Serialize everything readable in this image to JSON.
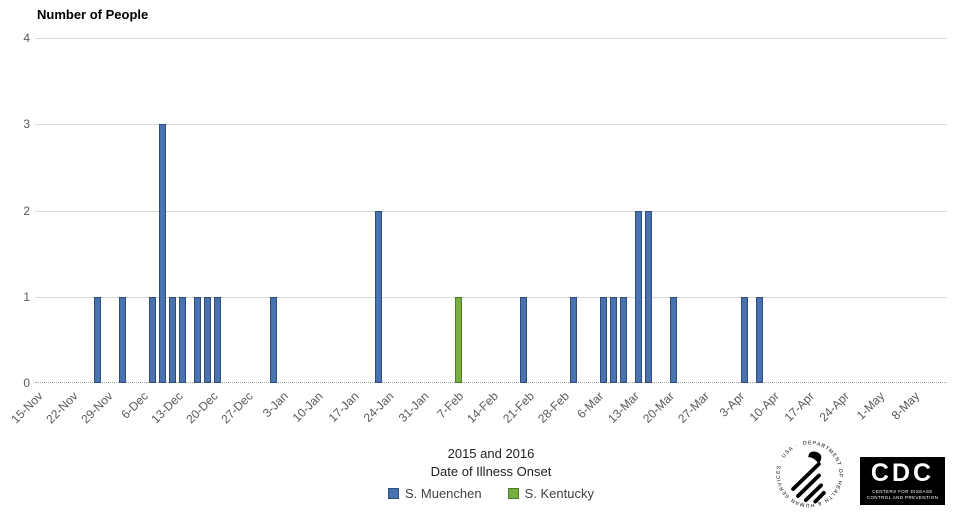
{
  "chart_data": {
    "type": "bar",
    "title": "Number of People",
    "x_axis_title_line1": "2015 and 2016",
    "x_axis_title_line2": "Date of Illness Onset",
    "ylim": [
      0,
      4
    ],
    "yticks": [
      0,
      1,
      2,
      3,
      4
    ],
    "x_tick_labels": [
      "15-Nov",
      "22-Nov",
      "29-Nov",
      "6-Dec",
      "13-Dec",
      "20-Dec",
      "27-Dec",
      "3-Jan",
      "10-Jan",
      "17-Jan",
      "24-Jan",
      "31-Jan",
      "7-Feb",
      "14-Feb",
      "21-Feb",
      "28-Feb",
      "6-Mar",
      "13-Mar",
      "20-Mar",
      "27-Mar",
      "3-Apr",
      "10-Apr",
      "17-Apr",
      "24-Apr",
      "1-May",
      "8-May"
    ],
    "x_tick_interval_days": 7,
    "x_axis_span_days": 182,
    "grid": true,
    "legend_position": "bottom",
    "series": [
      {
        "name": "S. Muenchen",
        "fill": "#4a72b0",
        "border": "#2d4d77",
        "points": [
          {
            "date": "27-Nov",
            "day": 12,
            "value": 1
          },
          {
            "date": "2-Dec",
            "day": 17,
            "value": 1
          },
          {
            "date": "8-Dec",
            "day": 23,
            "value": 1
          },
          {
            "date": "10-Dec",
            "day": 25,
            "value": 3
          },
          {
            "date": "12-Dec",
            "day": 27,
            "value": 1
          },
          {
            "date": "14-Dec",
            "day": 29,
            "value": 1
          },
          {
            "date": "17-Dec",
            "day": 32,
            "value": 1
          },
          {
            "date": "19-Dec",
            "day": 34,
            "value": 1
          },
          {
            "date": "21-Dec",
            "day": 36,
            "value": 1
          },
          {
            "date": "1-Jan",
            "day": 47,
            "value": 1
          },
          {
            "date": "22-Jan",
            "day": 68,
            "value": 2
          },
          {
            "date": "20-Feb",
            "day": 97,
            "value": 1
          },
          {
            "date": "1-Mar",
            "day": 107,
            "value": 1
          },
          {
            "date": "7-Mar",
            "day": 113,
            "value": 1
          },
          {
            "date": "9-Mar",
            "day": 115,
            "value": 1
          },
          {
            "date": "11-Mar",
            "day": 117,
            "value": 1
          },
          {
            "date": "14-Mar",
            "day": 120,
            "value": 2
          },
          {
            "date": "16-Mar",
            "day": 122,
            "value": 2
          },
          {
            "date": "21-Mar",
            "day": 127,
            "value": 1
          },
          {
            "date": "4-Apr",
            "day": 141,
            "value": 1
          },
          {
            "date": "7-Apr",
            "day": 144,
            "value": 1
          }
        ]
      },
      {
        "name": "S. Kentucky",
        "fill": "#76b041",
        "border": "#4e7a28",
        "points": [
          {
            "date": "7-Feb",
            "day": 84,
            "value": 1
          }
        ]
      }
    ]
  },
  "logos": {
    "hhs_seal_text": "DEPARTMENT OF HEALTH & HUMAN SERVICES · USA ·",
    "cdc_label": "CDC",
    "cdc_caption_line1": "CENTERS FOR DISEASE",
    "cdc_caption_line2": "CONTROL AND PREVENTION"
  },
  "colors": {
    "grid": "#d9d9d9",
    "axis_text": "#595959",
    "baseline": "#a6a6a6",
    "title": "#000000"
  }
}
